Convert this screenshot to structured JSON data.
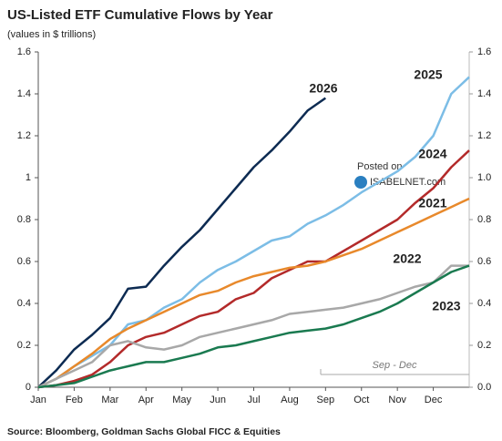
{
  "chart_data": {
    "type": "line",
    "title": "US-Listed ETF Cumulative Flows by Year",
    "subtitle": "(values in $ trillions)",
    "source": "Source: Bloomberg, Goldman Sachs Global FICC & Equities",
    "annotations": [
      "Sep - Dec",
      "Posted on",
      "ISABELNET.com"
    ],
    "categories": [
      "Jan",
      null,
      "Feb",
      null,
      "Mar",
      null,
      "Apr",
      null,
      "May",
      null,
      "Jun",
      null,
      "Jul",
      null,
      "Aug",
      null,
      "Sep",
      null,
      "Oct",
      null,
      "Nov",
      null,
      "Dec",
      null,
      null
    ],
    "series": [
      {
        "name": "2026",
        "color": "#0d2b52",
        "values": [
          0,
          0.08,
          0.18,
          0.25,
          0.33,
          0.47,
          0.48,
          0.58,
          0.67,
          0.75,
          0.85,
          0.95,
          1.05,
          1.13,
          1.22,
          1.32,
          1.38,
          null,
          null,
          null,
          null,
          null,
          null,
          null,
          null
        ]
      },
      {
        "name": "2025",
        "color": "#7cbde6",
        "values": [
          0,
          0.04,
          0.1,
          0.15,
          0.2,
          0.3,
          0.32,
          0.38,
          0.42,
          0.5,
          0.56,
          0.6,
          0.65,
          0.7,
          0.72,
          0.78,
          0.82,
          0.87,
          0.93,
          0.98,
          1.03,
          1.1,
          1.2,
          1.4,
          1.48
        ]
      },
      {
        "name": "2024",
        "color": "#b32a2a",
        "values": [
          0,
          0.01,
          0.03,
          0.06,
          0.12,
          0.2,
          0.24,
          0.26,
          0.3,
          0.34,
          0.36,
          0.42,
          0.45,
          0.52,
          0.56,
          0.6,
          0.6,
          0.65,
          0.7,
          0.75,
          0.8,
          0.88,
          0.95,
          1.05,
          1.13
        ]
      },
      {
        "name": "2021",
        "color": "#e8892b",
        "values": [
          0,
          0.04,
          0.1,
          0.16,
          0.23,
          0.28,
          0.32,
          0.36,
          0.4,
          0.44,
          0.46,
          0.5,
          0.53,
          0.55,
          0.57,
          0.58,
          0.6,
          0.63,
          0.66,
          0.7,
          0.74,
          0.78,
          0.82,
          0.86,
          0.9
        ]
      },
      {
        "name": "2022",
        "color": "#a8a8a8",
        "values": [
          0,
          0.04,
          0.08,
          0.12,
          0.2,
          0.22,
          0.19,
          0.18,
          0.2,
          0.24,
          0.26,
          0.28,
          0.3,
          0.32,
          0.35,
          0.36,
          0.37,
          0.38,
          0.4,
          0.42,
          0.45,
          0.48,
          0.5,
          0.58,
          0.58
        ]
      },
      {
        "name": "2023",
        "color": "#1a7a50",
        "values": [
          0,
          0.01,
          0.02,
          0.05,
          0.08,
          0.1,
          0.12,
          0.12,
          0.14,
          0.16,
          0.19,
          0.2,
          0.22,
          0.24,
          0.26,
          0.27,
          0.28,
          0.3,
          0.33,
          0.36,
          0.4,
          0.45,
          0.5,
          0.55,
          0.58
        ]
      }
    ],
    "ylim": [
      0,
      1.6
    ],
    "yticks": [
      0,
      0.2,
      0.4,
      0.6,
      0.8,
      1,
      1.2,
      1.4,
      1.6
    ],
    "y2lim": [
      0,
      1.6
    ],
    "y2ticks": [
      {
        "value": 0,
        "label": "0.0"
      },
      0.2,
      0.4,
      0.6,
      0.8,
      {
        "value": 1,
        "label": "1.0"
      },
      1.2,
      1.4,
      1.6
    ],
    "grid": false
  }
}
